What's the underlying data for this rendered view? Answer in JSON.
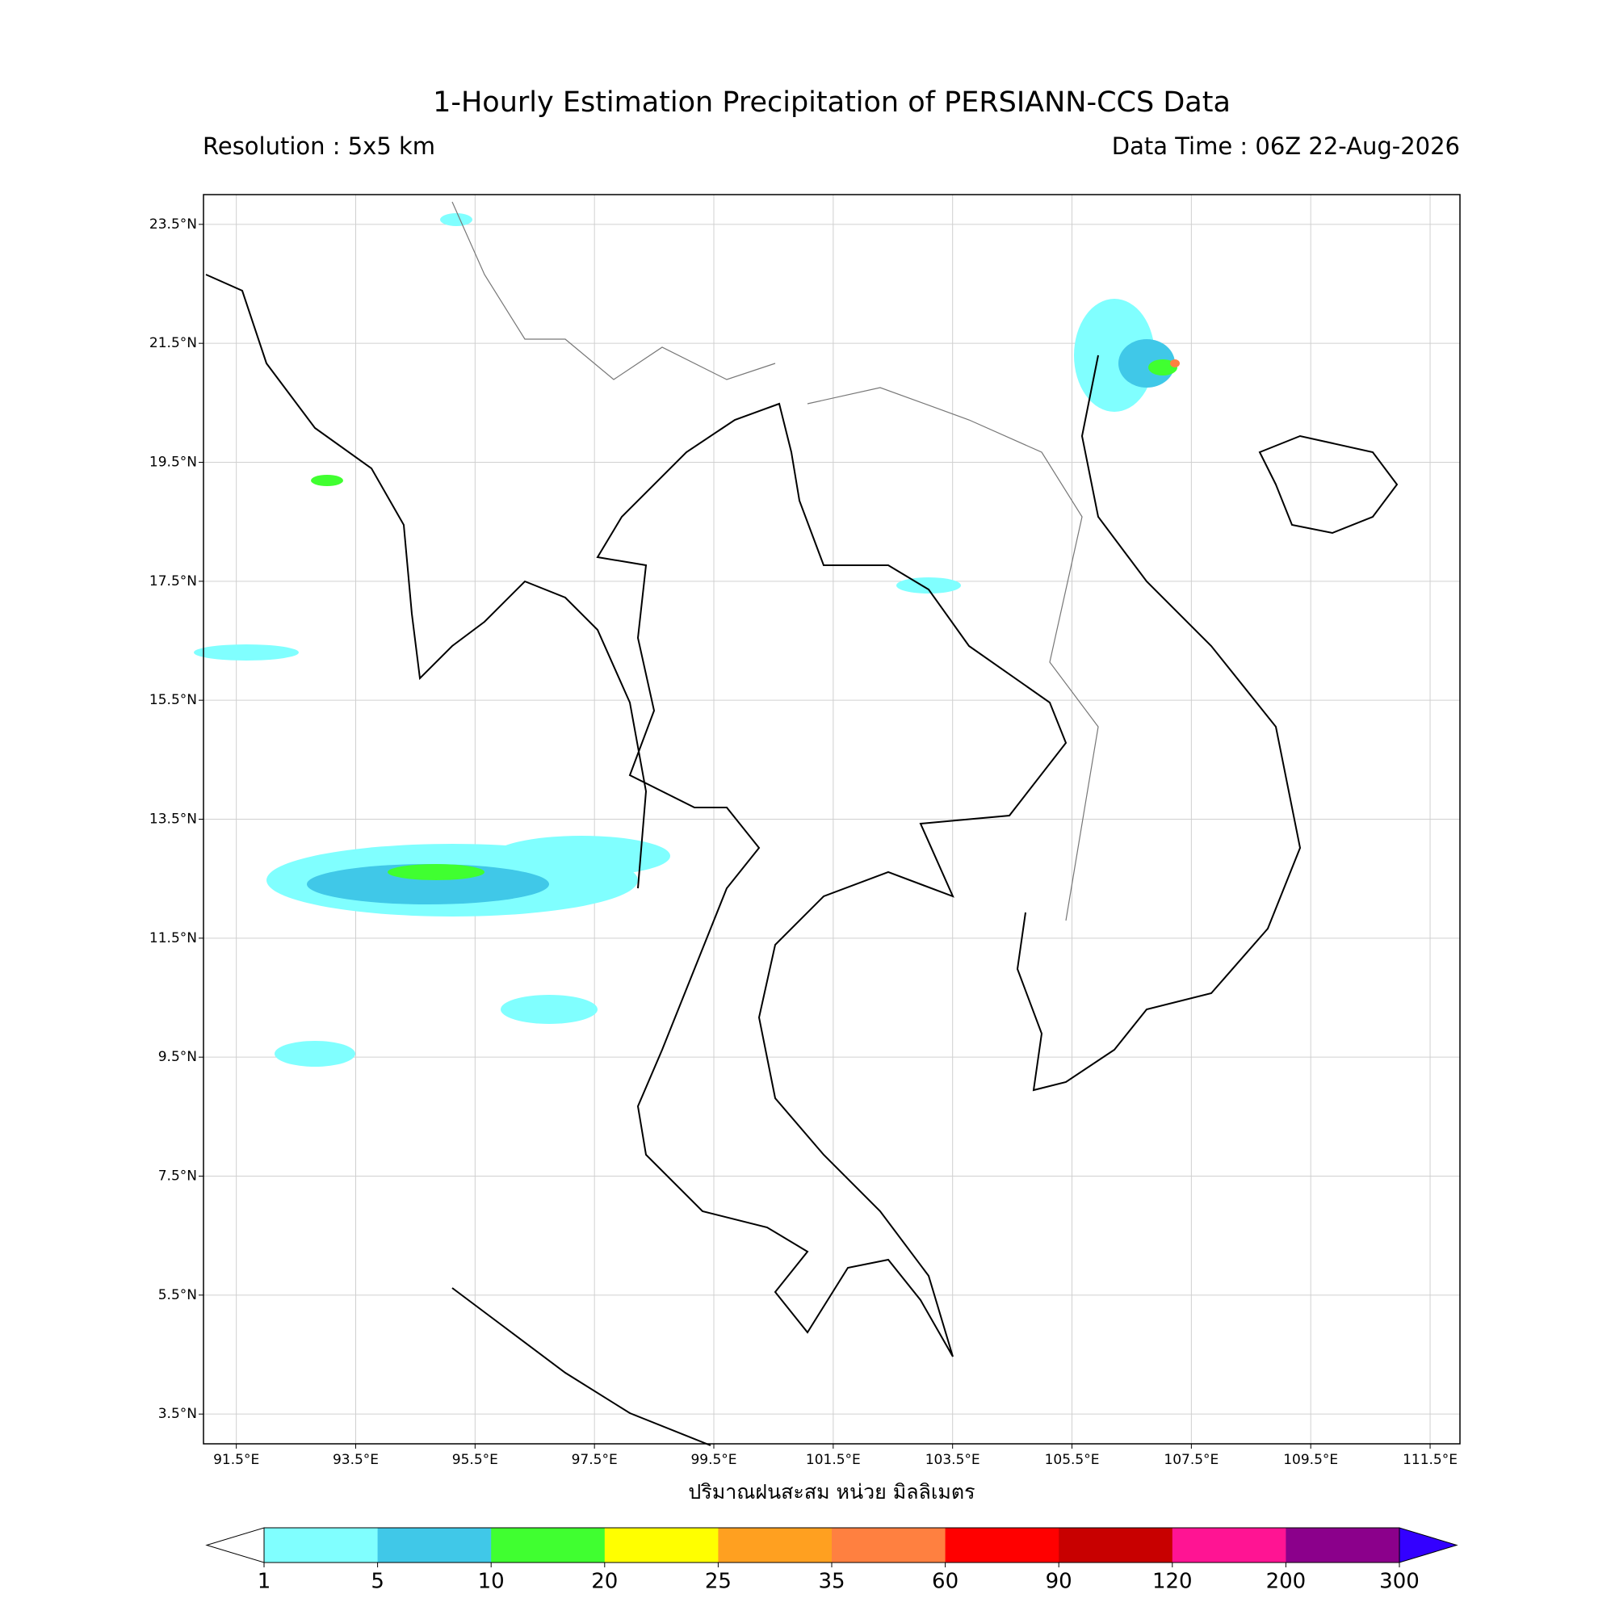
{
  "map": {
    "title": "1-Hourly Estimation Precipitation of PERSIANN-CCS Data",
    "subtitle_left": "Resolution : 5x5 km",
    "subtitle_right": "Data Time : 06Z 22-Aug-2026",
    "xlim": [
      90.95,
      112.0
    ],
    "ylim": [
      3.0,
      24.0
    ],
    "grid": true,
    "xticks": [
      {
        "value": 91.5,
        "label": "91.5°E"
      },
      {
        "value": 93.5,
        "label": "93.5°E"
      },
      {
        "value": 95.5,
        "label": "95.5°E"
      },
      {
        "value": 97.5,
        "label": "97.5°E"
      },
      {
        "value": 99.5,
        "label": "99.5°E"
      },
      {
        "value": 101.5,
        "label": "101.5°E"
      },
      {
        "value": 103.5,
        "label": "103.5°E"
      },
      {
        "value": 105.5,
        "label": "105.5°E"
      },
      {
        "value": 107.5,
        "label": "107.5°E"
      },
      {
        "value": 109.5,
        "label": "109.5°E"
      },
      {
        "value": 111.5,
        "label": "111.5°E"
      }
    ],
    "yticks": [
      {
        "value": 23.5,
        "label": "23.5°N"
      },
      {
        "value": 21.5,
        "label": "21.5°N"
      },
      {
        "value": 19.5,
        "label": "19.5°N"
      },
      {
        "value": 17.5,
        "label": "17.5°N"
      },
      {
        "value": 15.5,
        "label": "15.5°N"
      },
      {
        "value": 13.5,
        "label": "13.5°N"
      },
      {
        "value": 11.5,
        "label": "11.5°N"
      },
      {
        "value": 9.5,
        "label": "9.5°N"
      },
      {
        "value": 7.5,
        "label": "7.5°N"
      },
      {
        "value": 5.5,
        "label": "5.5°N"
      },
      {
        "value": 3.5,
        "label": "3.5°N"
      }
    ],
    "xlabel": "ปริมาณฝนสะสม หน่วย มิลลิเมตร",
    "colorbar": {
      "ticks": [
        1,
        5,
        10,
        20,
        25,
        35,
        60,
        90,
        120,
        200,
        300
      ],
      "colors": [
        "#80ffff",
        "#40c8e8",
        "#40ff30",
        "#ffff00",
        "#ffa020",
        "#ff8040",
        "#ff0000",
        "#c80000",
        "#ff1493",
        "#8b008b"
      ],
      "under_color": "#ffffff",
      "over_color": "#3300ff"
    }
  }
}
